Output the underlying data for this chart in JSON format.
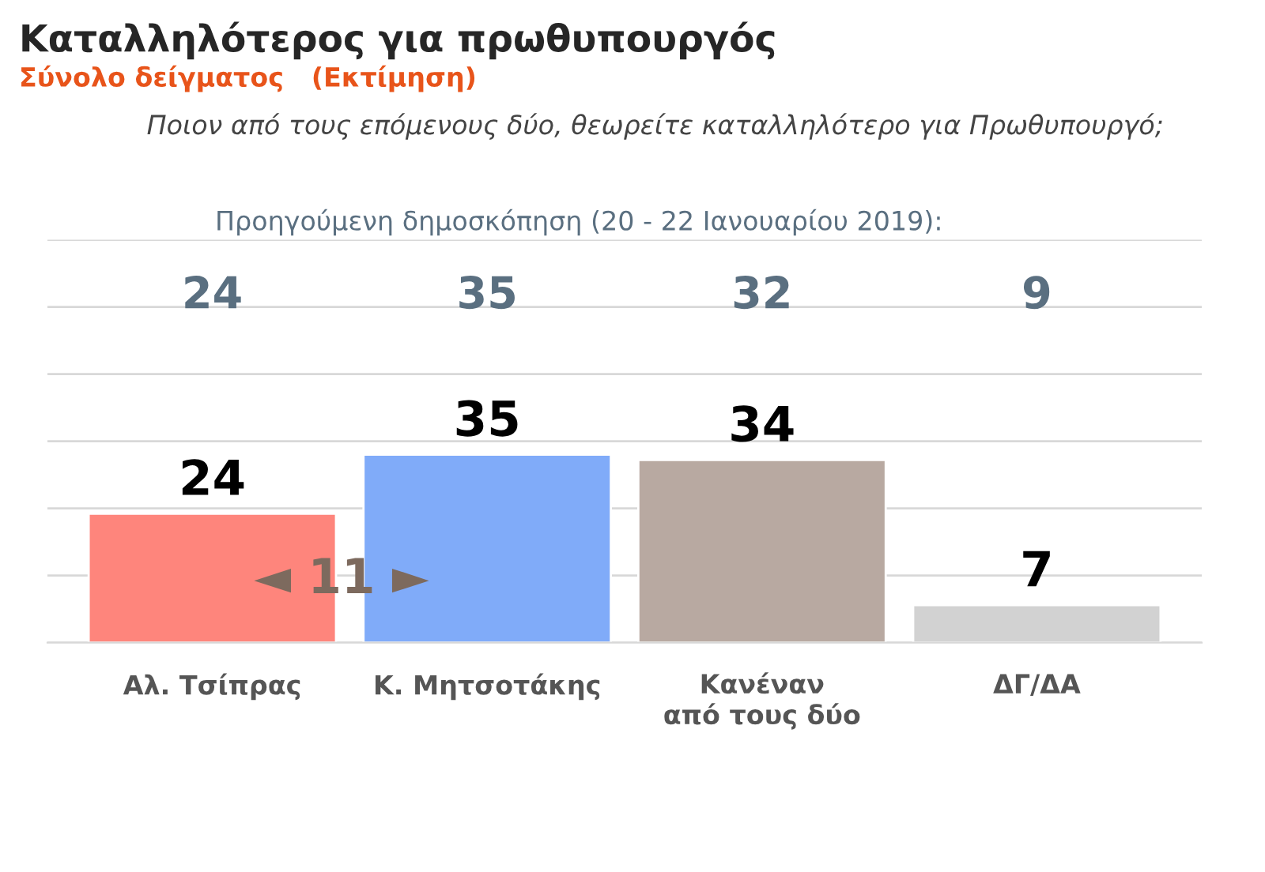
{
  "chart_data": {
    "type": "bar",
    "title": "Καταλληλότερος για πρωθυπουργός",
    "subtitle": "Σύνολο δείγματος   (Εκτίμηση)",
    "categories": [
      "Αλ. Τσίπρας",
      "Κ. Μητσοτάκης",
      "Κανέναν\nαπό τους δύο",
      "ΔΓ/ΔΑ"
    ],
    "values": [
      24,
      35,
      34,
      7
    ],
    "colors": [
      "#fe857c",
      "#80abf9",
      "#b8a9a1",
      "#d2d2d2"
    ],
    "data_labels": true,
    "ylim": [
      0,
      75
    ],
    "yticks": [
      {
        "value": 0,
        "label": null
      },
      {
        "value": 12.5,
        "label": null
      },
      {
        "value": 25,
        "label": null
      },
      {
        "value": 37.5,
        "label": null
      },
      {
        "value": 50,
        "label": null
      },
      {
        "value": 62.5,
        "label": null
      },
      {
        "value": 75,
        "label": null
      }
    ],
    "tick_labels": "x",
    "grid": "y",
    "annotations": [
      "Ποιον από τους επόμενους δύο, θεωρείτε καταλληλότερο για Πρωθυπουργό;",
      "Προηγούμενη δημοσκόπηση (20 - 22 Ιανουαρίου 2019):",
      "24",
      "35",
      "32",
      "9",
      "◄ 11 ►"
    ]
  }
}
